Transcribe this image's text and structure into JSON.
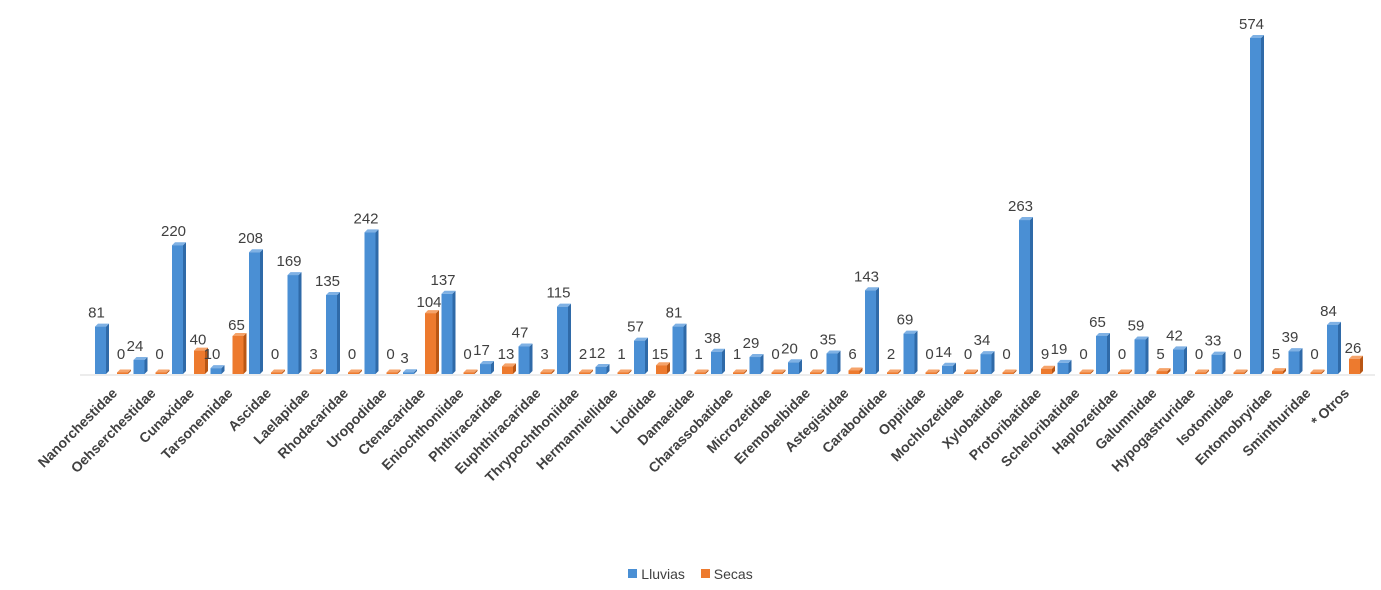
{
  "chart_data": {
    "type": "bar",
    "title": "",
    "xlabel": "",
    "ylabel": "",
    "ylim": [
      0,
      600
    ],
    "grid": false,
    "legend_position": "bottom",
    "categories": [
      "Nanorchestidae",
      "Oehserchestidae",
      "Cunaxidae",
      "Tarsonemidae",
      "Ascidae",
      "Laelapidae",
      "Rhodacaridae",
      "Uropodidae",
      "Ctenacaridae",
      "Eniochthoniidae",
      "Phthiracaridae",
      "Euphthiracaridae",
      "Thrypochthoniidae",
      "Hermanniellidae",
      "Liodidae",
      "Damaeidae",
      "Charassobatidae",
      "Microzetidae",
      "Eremobelbidae",
      "Astegistidae",
      "Carabodidae",
      "Oppiidae",
      "Mochlozetidae",
      "Xylobatidae",
      "Protoribatidae",
      "Scheloribatidae",
      "Haplozetidae",
      "Galumnidae",
      "Hypogastruridae",
      "Isotomidae",
      "Entomobryidae",
      "Sminthuridae",
      "* Otros"
    ],
    "series": [
      {
        "name": "Lluvias",
        "color": "#4a8fd4",
        "values": [
          81,
          24,
          220,
          10,
          208,
          169,
          135,
          242,
          3,
          137,
          17,
          47,
          115,
          12,
          57,
          81,
          38,
          29,
          20,
          35,
          143,
          69,
          14,
          34,
          263,
          19,
          65,
          59,
          42,
          33,
          574,
          39,
          84
        ]
      },
      {
        "name": "Secas",
        "color": "#ed7a2e",
        "values": [
          0,
          0,
          40,
          65,
          0,
          3,
          0,
          0,
          104,
          0,
          13,
          3,
          2,
          1,
          15,
          1,
          1,
          0,
          0,
          6,
          2,
          0,
          0,
          0,
          9,
          0,
          0,
          5,
          0,
          0,
          5,
          0,
          26
        ]
      }
    ]
  }
}
